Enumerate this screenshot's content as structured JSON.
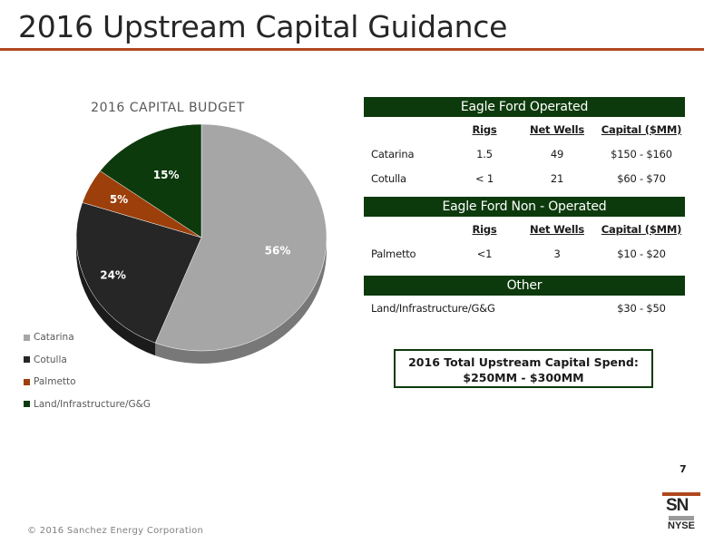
{
  "slide": {
    "title": "2016 Upstream Capital Guidance",
    "page_number": "7",
    "copyright": "© 2016 Sanchez Energy Corporation",
    "logo": {
      "mark": "SN",
      "exchange": "NYSE"
    },
    "total_line1": "2016 Total Upstream Capital Spend:",
    "total_line2": "$250MM - $300MM"
  },
  "chart_data": {
    "type": "pie",
    "title": "2016 CAPITAL BUDGET",
    "categories": [
      "Catarina",
      "Cotulla",
      "Palmetto",
      "Land/Infrastructure/G&G"
    ],
    "values": [
      56,
      24,
      5,
      15
    ],
    "labels": [
      "56%",
      "24%",
      "5%",
      "15%"
    ],
    "colors": [
      "#a6a6a6",
      "#262626",
      "#9c3f0a",
      "#0d3a0d"
    ],
    "legend_position": "bottom-left"
  },
  "sections": [
    {
      "title": "Eagle Ford Operated",
      "headers": [
        "",
        "Rigs",
        "Net Wells",
        "Capital ($MM)"
      ],
      "rows": [
        [
          "Catarina",
          "1.5",
          "49",
          "$150 - $160"
        ],
        [
          "Cotulla",
          "< 1",
          "21",
          "$60 - $70"
        ]
      ]
    },
    {
      "title": "Eagle Ford  Non - Operated",
      "headers": [
        "",
        "Rigs",
        "Net Wells",
        "Capital ($MM)"
      ],
      "rows": [
        [
          "Palmetto",
          "<1",
          "3",
          "$10 - $20"
        ]
      ]
    },
    {
      "title": "Other",
      "rows": [
        [
          "Land/Infrastructure/G&G",
          "$30 - $50"
        ]
      ]
    }
  ]
}
